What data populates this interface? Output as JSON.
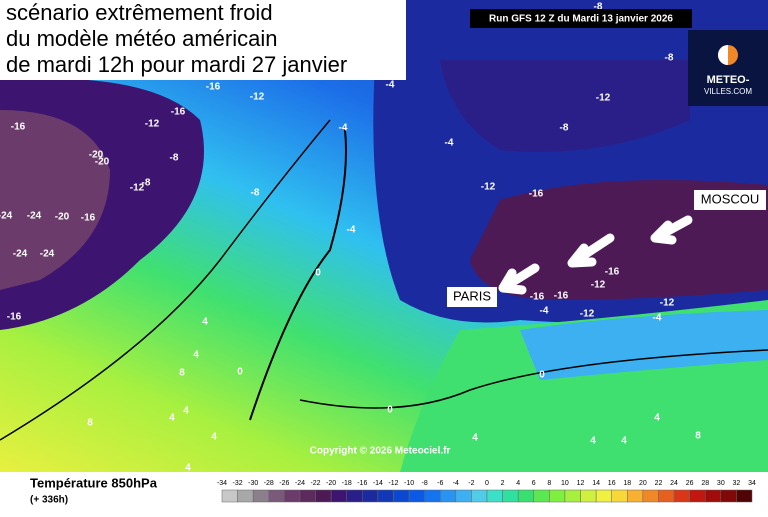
{
  "header": {
    "title_lines": [
      "scénario extrêmement froid",
      "du modèle météo américain",
      "de mardi 12h pour mardi 27 janvier"
    ],
    "run": "Run GFS 12 Z du Mardi 13 janvier 2026"
  },
  "logo": {
    "line1": "METEO-",
    "line2": "VILLES.COM"
  },
  "cities": [
    "MOSCOU",
    "PARIS"
  ],
  "copyright": "Copyright © 2026 Meteociel.fr",
  "contour_labels": [
    -16,
    -12,
    -16,
    -12,
    -16,
    -4,
    -8,
    -20,
    -20,
    -12,
    -8,
    -8,
    -24,
    -24,
    -20,
    -16,
    -4,
    -24,
    -24,
    0,
    -16,
    4,
    4,
    0,
    8,
    8,
    4,
    4,
    4,
    4,
    -4,
    -8,
    -8,
    -12,
    -8,
    -4,
    -12,
    -16,
    -16,
    -12,
    -16,
    -16,
    -4,
    -12,
    -12,
    -4,
    0,
    0,
    4,
    4,
    4,
    8,
    4
  ],
  "legend": {
    "title": "Température 850hPa",
    "subtitle": "(+ 336h)",
    "ticks": [
      -34,
      -32,
      -30,
      -28,
      -26,
      -24,
      -22,
      -20,
      -18,
      -16,
      -14,
      -12,
      -10,
      -8,
      -6,
      -4,
      -2,
      0,
      2,
      4,
      6,
      8,
      10,
      12,
      14,
      16,
      18,
      20,
      22,
      24,
      26,
      28,
      30,
      32,
      34
    ],
    "colors": [
      "#c8c8c8",
      "#a8a8a8",
      "#8c7f8c",
      "#7a5a7a",
      "#6b3c6b",
      "#5c2a5c",
      "#4d1a55",
      "#3d1470",
      "#2a1f88",
      "#1c2aa0",
      "#1238b8",
      "#0a48d0",
      "#0a5ae6",
      "#1474f0",
      "#2894f2",
      "#3cb0f0",
      "#50cce8",
      "#3ce0c8",
      "#30e0a0",
      "#38e070",
      "#5ce850",
      "#80f040",
      "#a8f040",
      "#d0f040",
      "#f0f040",
      "#f8d838",
      "#f8b030",
      "#f08828",
      "#e86020",
      "#d83818",
      "#c01810",
      "#a00c0c",
      "#800808",
      "#500404"
    ]
  }
}
